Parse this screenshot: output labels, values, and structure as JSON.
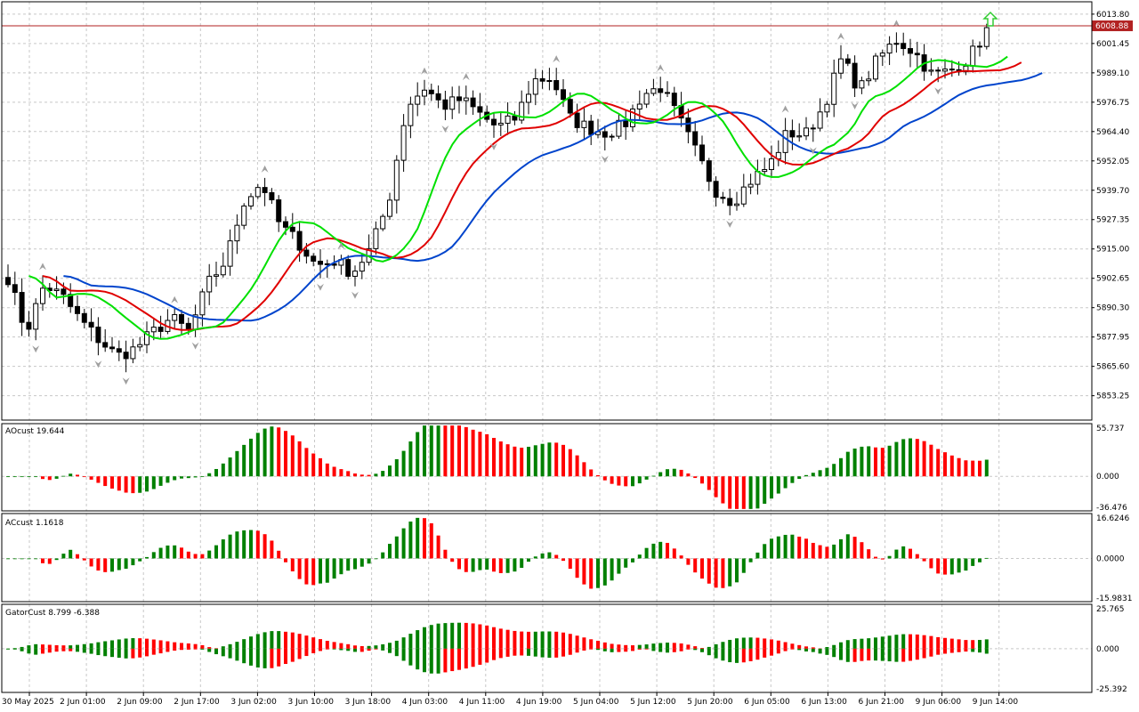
{
  "colors": {
    "frame": "#000000",
    "grid": "#c8c8c8",
    "bull": "#008000",
    "bear": "#ff0000",
    "jaw": "#0044cc",
    "teeth": "#e00000",
    "lips": "#00e000",
    "price_line": "#b22222",
    "price_label_bg": "#b22222",
    "fractal": "#a0a0a0",
    "signal_arrow": "#33cc33"
  },
  "chart_data": [
    {
      "pane": "price",
      "type": "candlestick",
      "current_price_label": "6008.88",
      "current_price": 6008.88,
      "y_ticks": [
        "6013.80",
        "6001.45",
        "5989.10",
        "5976.75",
        "5964.40",
        "5952.05",
        "5939.70",
        "5927.35",
        "5915.00",
        "5902.65",
        "5890.30",
        "5877.95",
        "5865.60",
        "5853.25"
      ],
      "ylim": [
        5843,
        6019
      ],
      "key_closes": [
        5903,
        5880,
        5900,
        5895,
        5885,
        5877,
        5870,
        5873,
        5880,
        5886,
        5880,
        5900,
        5910,
        5935,
        5943,
        5925,
        5918,
        5908,
        5910,
        5905,
        5915,
        5935,
        5975,
        5983,
        5975,
        5978,
        5972,
        5966,
        5970,
        5986,
        5987,
        5970,
        5966,
        5964,
        5967,
        5980,
        5983,
        5970,
        5955,
        5940,
        5935,
        5944,
        5950,
        5964,
        5963,
        5975,
        5995,
        5982,
        5995,
        6003,
        5998,
        5988,
        5990,
        5995,
        6007
      ],
      "alligator": {
        "jaw": "blue",
        "teeth": "red",
        "lips": "green"
      },
      "signal": "buy-arrow"
    },
    {
      "pane": "ao",
      "type": "histogram",
      "label": "AOcust 19.644",
      "y_ticks": [
        "55.737",
        "0.000",
        "-36.476"
      ],
      "ylim": [
        -36.476,
        55.737
      ]
    },
    {
      "pane": "ac",
      "type": "histogram",
      "label": "ACcust 1.1618",
      "y_ticks": [
        "16.6246",
        "0.0000",
        "-15.9831"
      ],
      "ylim": [
        -15.9831,
        16.6246
      ]
    },
    {
      "pane": "gator",
      "type": "histogram",
      "label": "GatorCust 8.799 -6.388",
      "y_ticks": [
        "25.765",
        "0.000",
        "-25.392"
      ],
      "ylim": [
        -25.392,
        25.765
      ]
    }
  ],
  "x_labels": [
    "30 May 2025",
    "2 Jun 01:00",
    "2 Jun 09:00",
    "2 Jun 17:00",
    "3 Jun 02:00",
    "3 Jun 10:00",
    "3 Jun 18:00",
    "4 Jun 03:00",
    "4 Jun 11:00",
    "4 Jun 19:00",
    "5 Jun 04:00",
    "5 Jun 12:00",
    "5 Jun 20:00",
    "6 Jun 05:00",
    "6 Jun 13:00",
    "6 Jun 21:00",
    "9 Jun 06:00",
    "9 Jun 14:00"
  ]
}
